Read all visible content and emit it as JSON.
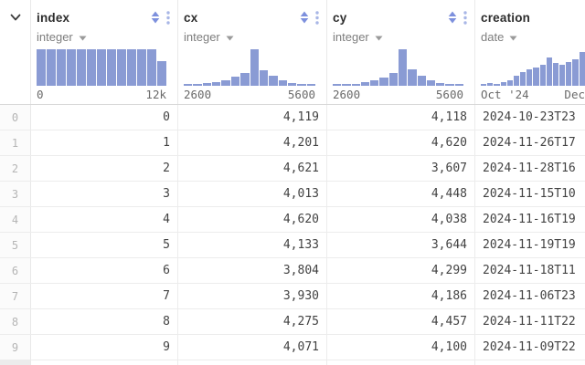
{
  "colors": {
    "histogram_bar": "#8a9bd4",
    "sort_icon": "#7d90dd",
    "kebab_icon": "#a8b6e6",
    "header_text": "#2d2d2d",
    "type_text": "#7d7d7d",
    "value_text": "#424242",
    "row_number_text": "#b5b5b5",
    "axis_text": "#6a6a6a",
    "border": "#e9e9e9"
  },
  "table": {
    "corner": {
      "icon": "chevron-down"
    },
    "columns": [
      {
        "name": "index",
        "type": "integer",
        "icons": [
          "sort-arrows",
          "kebab-menu"
        ],
        "histogram": {
          "type": "bar",
          "min_label": "0",
          "max_label": "12k",
          "values": [
            1,
            1,
            1,
            1,
            1,
            1,
            1,
            1,
            1,
            1,
            1,
            1,
            0.68
          ]
        }
      },
      {
        "name": "cx",
        "type": "integer",
        "icons": [
          "sort-arrows",
          "kebab-menu"
        ],
        "histogram": {
          "type": "bar",
          "min_label": "2600",
          "max_label": "5600",
          "values": [
            0.05,
            0.05,
            0.07,
            0.1,
            0.14,
            0.24,
            0.36,
            1,
            0.42,
            0.28,
            0.14,
            0.08,
            0.05,
            0.04
          ]
        }
      },
      {
        "name": "cy",
        "type": "integer",
        "icons": [
          "sort-arrows",
          "kebab-menu"
        ],
        "histogram": {
          "type": "bar",
          "min_label": "2600",
          "max_label": "5600",
          "values": [
            0.05,
            0.05,
            0.06,
            0.1,
            0.15,
            0.22,
            0.35,
            1,
            0.45,
            0.28,
            0.14,
            0.08,
            0.05,
            0.04
          ]
        }
      },
      {
        "name": "creation",
        "type": "date",
        "icons": [
          "sort-arrows",
          "kebab-menu"
        ],
        "histogram": {
          "type": "bar",
          "min_label": "Oct '24",
          "max_label": "Dec",
          "values": [
            0.05,
            0.08,
            0.06,
            0.1,
            0.16,
            0.28,
            0.38,
            0.46,
            0.5,
            0.58,
            0.78,
            0.62,
            0.58,
            0.66,
            0.72,
            0.92,
            0.7,
            0.85
          ]
        }
      }
    ],
    "rows": [
      {
        "row_number": "0",
        "index": "0",
        "cx": "4,119",
        "cy": "4,118",
        "creation": "2024-10-23T23"
      },
      {
        "row_number": "1",
        "index": "1",
        "cx": "4,201",
        "cy": "4,620",
        "creation": "2024-11-26T17"
      },
      {
        "row_number": "2",
        "index": "2",
        "cx": "4,621",
        "cy": "3,607",
        "creation": "2024-11-28T16"
      },
      {
        "row_number": "3",
        "index": "3",
        "cx": "4,013",
        "cy": "4,448",
        "creation": "2024-11-15T10"
      },
      {
        "row_number": "4",
        "index": "4",
        "cx": "4,620",
        "cy": "4,038",
        "creation": "2024-11-16T19"
      },
      {
        "row_number": "5",
        "index": "5",
        "cx": "4,133",
        "cy": "3,644",
        "creation": "2024-11-19T19"
      },
      {
        "row_number": "6",
        "index": "6",
        "cx": "3,804",
        "cy": "4,299",
        "creation": "2024-11-18T11"
      },
      {
        "row_number": "7",
        "index": "7",
        "cx": "3,930",
        "cy": "4,186",
        "creation": "2024-11-06T23"
      },
      {
        "row_number": "8",
        "index": "8",
        "cx": "4,275",
        "cy": "4,457",
        "creation": "2024-11-11T22"
      },
      {
        "row_number": "9",
        "index": "9",
        "cx": "4,071",
        "cy": "4,100",
        "creation": "2024-11-09T22"
      }
    ]
  }
}
